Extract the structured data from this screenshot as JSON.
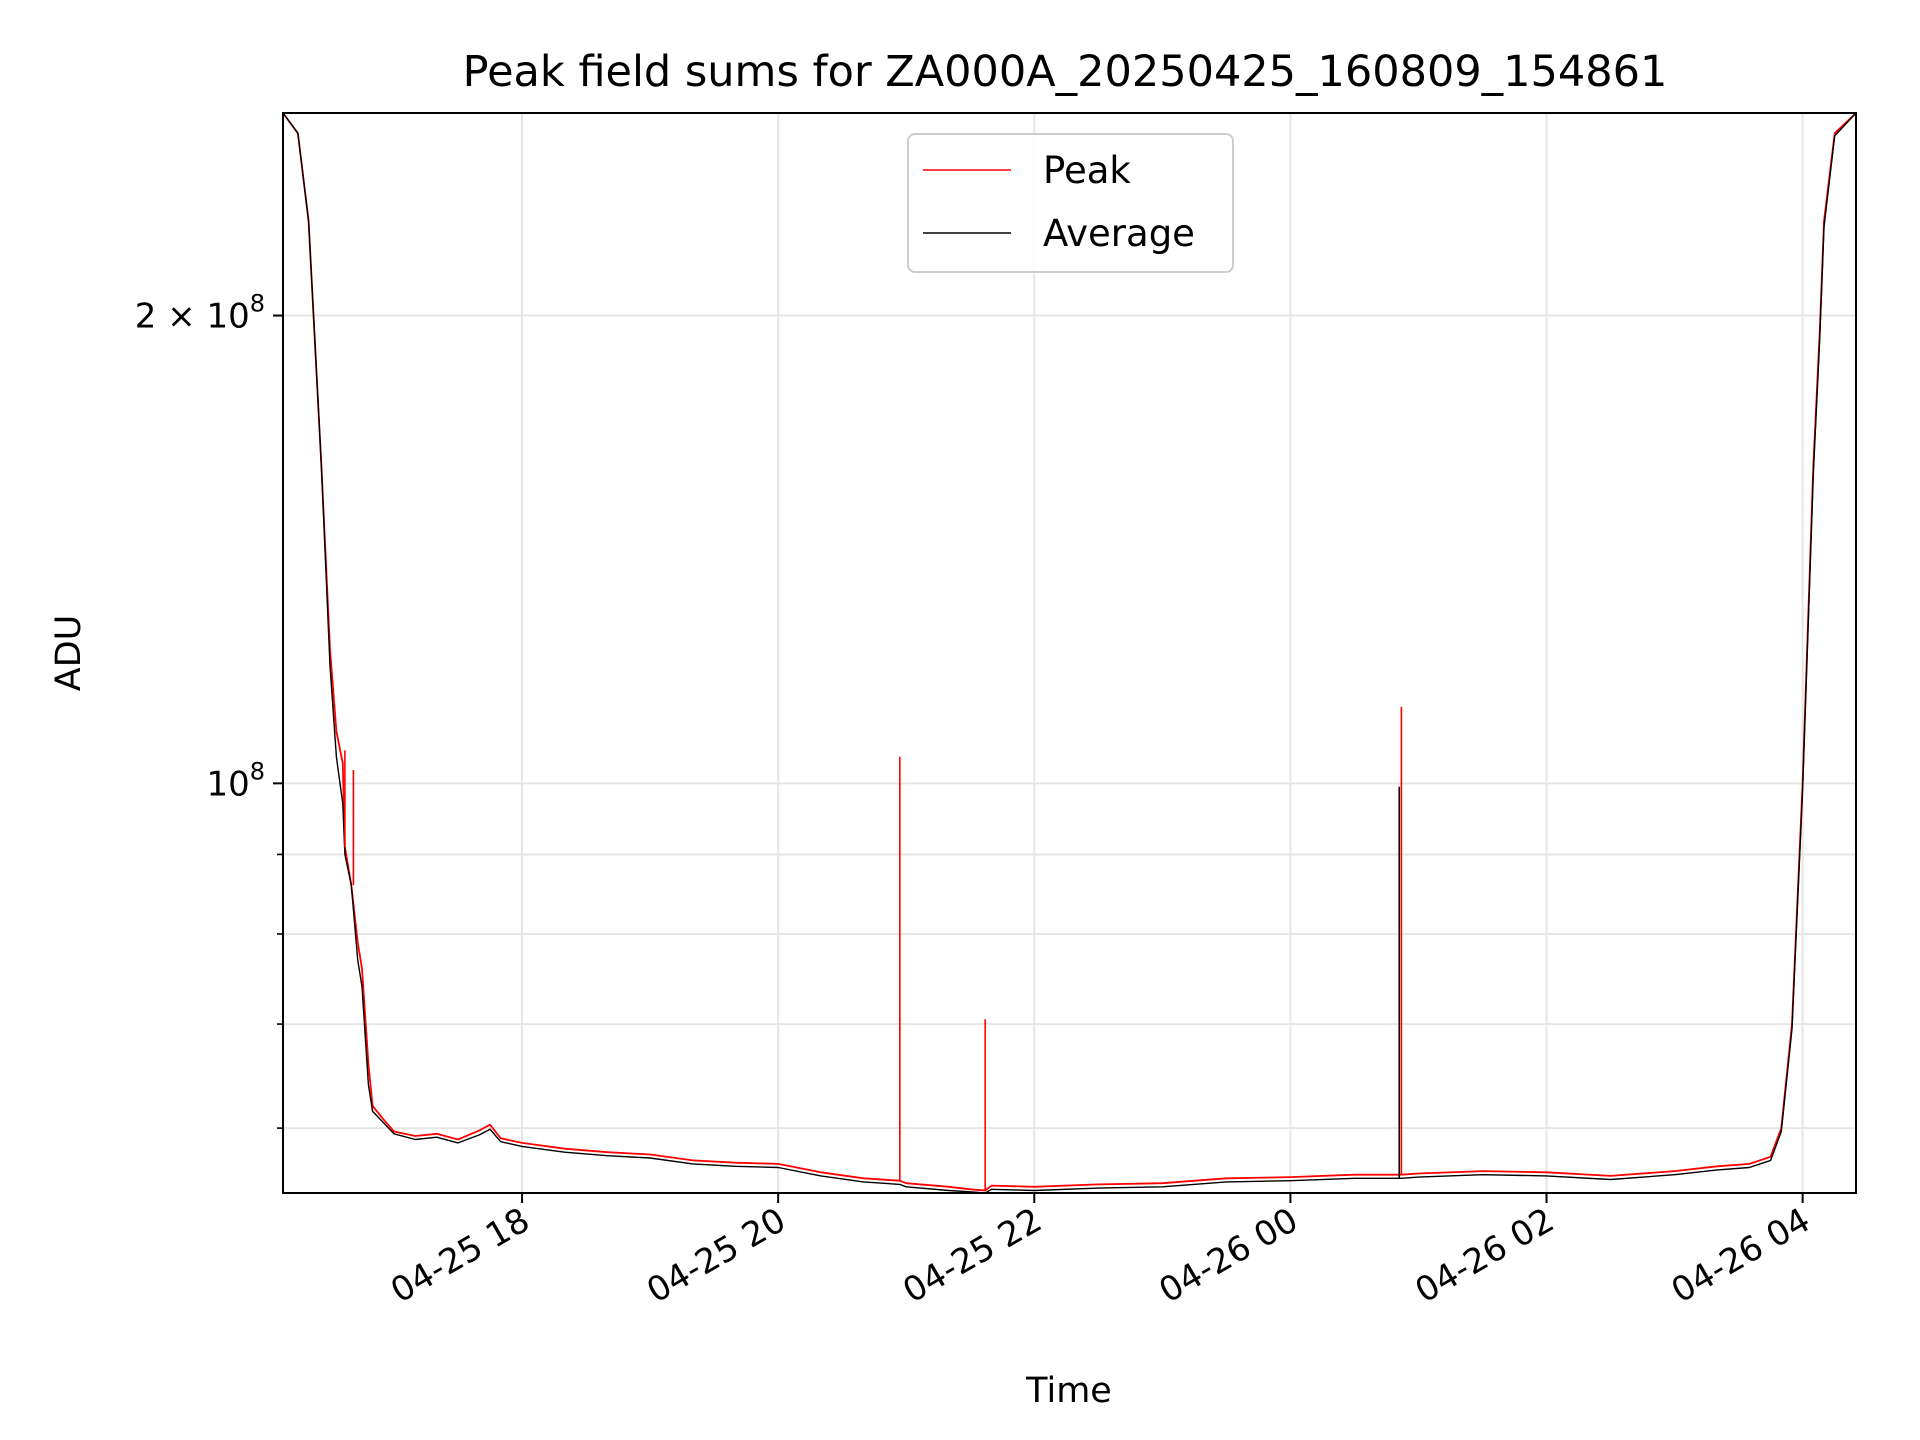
{
  "chart_data": {
    "type": "line",
    "title": "Peak field sums for ZA000A_20250425_160809_154861",
    "xlabel": "Time",
    "ylabel": "ADU",
    "y_scale": "log",
    "x_scale": "time",
    "grid": true,
    "legend": {
      "placement": "top-center"
    },
    "xlim": [
      "2025-04-25 16:08",
      "2025-04-26 04:25"
    ],
    "ylim": [
      54500000,
      270000000
    ],
    "x_ticks": [
      {
        "value": "2025-04-25 18:00",
        "label": "04-25 18"
      },
      {
        "value": "2025-04-25 20:00",
        "label": "04-25 20"
      },
      {
        "value": "2025-04-25 22:00",
        "label": "04-25 22"
      },
      {
        "value": "2025-04-26 00:00",
        "label": "04-26 00"
      },
      {
        "value": "2025-04-26 02:00",
        "label": "04-26 02"
      },
      {
        "value": "2025-04-26 04:00",
        "label": "04-26 04"
      }
    ],
    "y_major_ticks": [
      {
        "value": 100000000,
        "label_base": "10",
        "label_exp": "8"
      },
      {
        "value": 200000000,
        "label_base": "2 × 10",
        "label_exp": "8"
      }
    ],
    "y_minor_ticks": [
      60000000,
      70000000,
      80000000,
      90000000
    ],
    "series": [
      {
        "name": "Peak",
        "color": "#ff0000",
        "x": [
          "2025-04-25 16:08",
          "2025-04-25 16:15",
          "2025-04-25 16:20",
          "2025-04-25 16:26",
          "2025-04-25 16:30",
          "2025-04-25 16:33",
          "2025-04-25 16:36",
          "2025-04-25 16:37",
          "2025-04-25 16:40",
          "2025-04-25 16:43",
          "2025-04-25 16:45",
          "2025-04-25 16:48",
          "2025-04-25 16:50",
          "2025-04-25 16:55",
          "2025-04-25 17:00",
          "2025-04-25 17:10",
          "2025-04-25 17:20",
          "2025-04-25 17:30",
          "2025-04-25 17:40",
          "2025-04-25 17:45",
          "2025-04-25 17:50",
          "2025-04-25 18:00",
          "2025-04-25 18:20",
          "2025-04-25 18:40",
          "2025-04-25 19:00",
          "2025-04-25 19:20",
          "2025-04-25 19:40",
          "2025-04-25 20:00",
          "2025-04-25 20:20",
          "2025-04-25 20:40",
          "2025-04-25 20:57",
          "2025-04-25 21:00",
          "2025-04-25 21:20",
          "2025-04-25 21:30",
          "2025-04-25 21:37",
          "2025-04-25 21:40",
          "2025-04-25 22:00",
          "2025-04-25 22:30",
          "2025-04-25 23:00",
          "2025-04-25 23:30",
          "2025-04-26 00:00",
          "2025-04-26 00:30",
          "2025-04-26 00:52",
          "2025-04-26 01:00",
          "2025-04-26 01:30",
          "2025-04-26 02:00",
          "2025-04-26 02:30",
          "2025-04-26 03:00",
          "2025-04-26 03:20",
          "2025-04-26 03:35",
          "2025-04-26 03:45",
          "2025-04-26 03:50",
          "2025-04-26 03:55",
          "2025-04-26 04:00",
          "2025-04-26 04:05",
          "2025-04-26 04:08",
          "2025-04-26 04:10",
          "2025-04-26 04:15",
          "2025-04-26 04:25"
        ],
        "y": [
          270000000,
          262000000,
          230000000,
          160000000,
          122000000,
          108000000,
          103000000,
          91000000,
          86000000,
          79000000,
          76000000,
          66000000,
          62000000,
          60800000,
          59700000,
          59300000,
          59500000,
          59000000,
          59800000,
          60300000,
          59100000,
          58700000,
          58200000,
          57900000,
          57700000,
          57200000,
          57000000,
          56900000,
          56200000,
          55700000,
          55500000,
          55300000,
          55000000,
          54800000,
          54700000,
          55100000,
          55000000,
          55200000,
          55300000,
          55700000,
          55800000,
          56000000,
          56000000,
          56100000,
          56300000,
          56200000,
          55900000,
          56300000,
          56700000,
          56900000,
          57500000,
          60000000,
          70000000,
          100000000,
          160000000,
          195000000,
          230000000,
          262000000,
          270000000
        ]
      },
      {
        "name": "Average",
        "color": "#000000",
        "x": [
          "2025-04-25 16:08",
          "2025-04-25 16:15",
          "2025-04-25 16:20",
          "2025-04-25 16:26",
          "2025-04-25 16:30",
          "2025-04-25 16:33",
          "2025-04-25 16:36",
          "2025-04-25 16:37",
          "2025-04-25 16:40",
          "2025-04-25 16:43",
          "2025-04-25 16:45",
          "2025-04-25 16:48",
          "2025-04-25 16:50",
          "2025-04-25 16:55",
          "2025-04-25 17:00",
          "2025-04-25 17:10",
          "2025-04-25 17:20",
          "2025-04-25 17:30",
          "2025-04-25 17:40",
          "2025-04-25 17:45",
          "2025-04-25 17:50",
          "2025-04-25 18:00",
          "2025-04-25 18:20",
          "2025-04-25 18:40",
          "2025-04-25 19:00",
          "2025-04-25 19:20",
          "2025-04-25 19:40",
          "2025-04-25 20:00",
          "2025-04-25 20:20",
          "2025-04-25 20:40",
          "2025-04-25 20:57",
          "2025-04-25 21:00",
          "2025-04-25 21:20",
          "2025-04-25 21:30",
          "2025-04-25 21:37",
          "2025-04-25 21:40",
          "2025-04-25 22:00",
          "2025-04-25 22:30",
          "2025-04-25 23:00",
          "2025-04-25 23:30",
          "2025-04-26 00:00",
          "2025-04-26 00:30",
          "2025-04-26 00:52",
          "2025-04-26 01:00",
          "2025-04-26 01:30",
          "2025-04-26 02:00",
          "2025-04-26 02:30",
          "2025-04-26 03:00",
          "2025-04-26 03:20",
          "2025-04-26 03:35",
          "2025-04-26 03:45",
          "2025-04-26 03:50",
          "2025-04-26 03:55",
          "2025-04-26 04:00",
          "2025-04-26 04:05",
          "2025-04-26 04:08",
          "2025-04-26 04:10",
          "2025-04-26 04:15",
          "2025-04-26 04:25"
        ],
        "y": [
          270000000,
          262000000,
          230000000,
          160000000,
          119000000,
          104000000,
          97000000,
          90000000,
          86000000,
          77000000,
          74000000,
          64000000,
          61500000,
          60500000,
          59500000,
          59000000,
          59200000,
          58700000,
          59400000,
          59900000,
          58800000,
          58400000,
          57900000,
          57600000,
          57400000,
          56900000,
          56700000,
          56600000,
          55900000,
          55400000,
          55200000,
          55000000,
          54700000,
          54600000,
          54500000,
          54800000,
          54700000,
          54900000,
          55000000,
          55400000,
          55500000,
          55700000,
          55700000,
          55800000,
          56000000,
          55900000,
          55600000,
          56000000,
          56400000,
          56600000,
          57200000,
          59700000,
          69500000,
          99000000,
          158000000,
          193000000,
          228000000,
          261000000,
          270000000
        ]
      }
    ],
    "annotations": [
      {
        "series": "Peak",
        "x": "2025-04-25 20:57",
        "y": 104000000
      },
      {
        "series": "Peak",
        "x": "2025-04-25 21:37",
        "y": 70500000
      },
      {
        "series": "Peak",
        "x": "2025-04-26 00:52",
        "y": 112000000
      },
      {
        "series": "Average",
        "x": "2025-04-26 00:51",
        "y": 99500000
      },
      {
        "series": "Peak",
        "x": "2025-04-25 16:37",
        "y": 105000000
      },
      {
        "series": "Peak",
        "x": "2025-04-25 16:41",
        "y": 102000000
      }
    ]
  }
}
